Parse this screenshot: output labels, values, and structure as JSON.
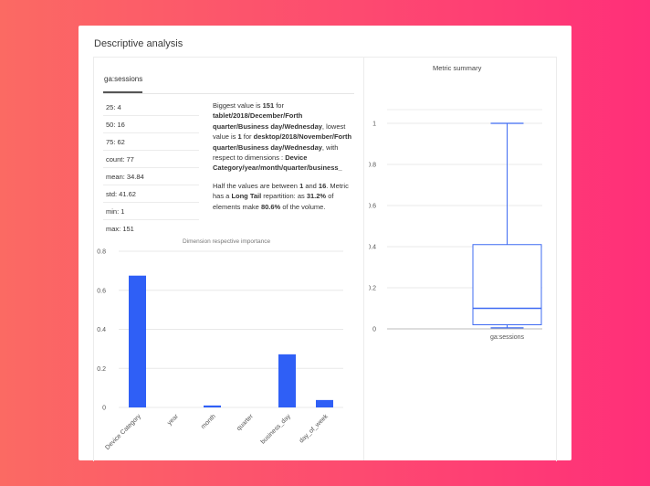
{
  "panel": {
    "title": "Descriptive analysis"
  },
  "tabs": [
    {
      "label": "ga:sessions"
    }
  ],
  "stats": [
    "25: 4",
    "50: 16",
    "75: 62",
    "count: 77",
    "mean: 34.84",
    "std: 41.62",
    "min: 1",
    "max: 151"
  ],
  "description": {
    "p1_a": "Biggest value is ",
    "p1_b": "151",
    "p1_c": " for ",
    "p1_d": "tablet/2018/December/Forth quarter/Business day/Wednesday",
    "p1_e": ", lowest value is ",
    "p1_f": "1",
    "p1_g": " for ",
    "p1_h": "desktop/2018/November/Forth quarter/Business day/Wednesday",
    "p1_i": ", with respect to dimensions : ",
    "p1_j": "Device Category/year/month/quarter/business_",
    "p2_a": "Half the values are between ",
    "p2_b": "1",
    "p2_c": " and ",
    "p2_d": "16",
    "p2_e": ". Metric has a ",
    "p2_f": "Long Tail",
    "p2_g": " repartition: as ",
    "p2_h": "31.2%",
    "p2_i": " of elements make ",
    "p2_j": "80.6%",
    "p2_k": " of the volume."
  },
  "colors": {
    "bar": "#2f5ff6",
    "box": "#3f6bf2",
    "grid": "#e8e8e8"
  },
  "chart_data": [
    {
      "type": "bar",
      "title": "Dimension respective importance",
      "categories": [
        "Device Category",
        "year",
        "month",
        "quarter",
        "business_day",
        "day_of_week"
      ],
      "values": [
        0.675,
        0.0,
        0.01,
        0.0,
        0.272,
        0.038
      ],
      "yticks": [
        "0",
        "0.2",
        "0.4",
        "0.6",
        "0.8"
      ],
      "ylim": [
        0,
        0.8
      ],
      "xlabel": "",
      "ylabel": ""
    },
    {
      "type": "box",
      "title": "Metric summary",
      "category": "ga:sessions",
      "min": 0.005,
      "q1": 0.02,
      "median": 0.1,
      "q3": 0.41,
      "max": 1.0,
      "yticks": [
        "0",
        "0.2",
        "0.4",
        "0.6",
        "0.8",
        "1"
      ],
      "ylim": [
        0,
        1
      ]
    }
  ]
}
